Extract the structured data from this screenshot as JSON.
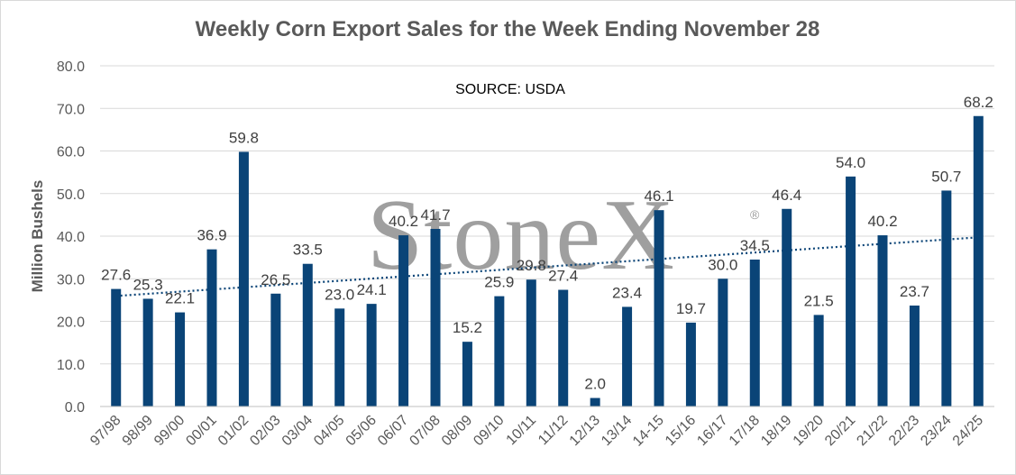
{
  "chart_data": {
    "type": "bar",
    "title": "Weekly Corn Export Sales for the Week Ending November 28",
    "annotation": "SOURCE: USDA",
    "watermark": "StoneX",
    "watermark_mark": "®",
    "ylabel": "Million Bushels",
    "xlabel": "",
    "ylim": [
      0,
      80
    ],
    "yticks": [
      "0.0",
      "10.0",
      "20.0",
      "30.0",
      "40.0",
      "50.0",
      "60.0",
      "70.0",
      "80.0"
    ],
    "grid": true,
    "legend": "none",
    "trendline": "linear",
    "bar_color": "#0a4477",
    "trend_color": "#0a4477",
    "categories": [
      "97/98",
      "98/99",
      "99/00",
      "00/01",
      "01/02",
      "02/03",
      "03/04",
      "04/05",
      "05/06",
      "06/07",
      "07/08",
      "08/09",
      "09/10",
      "10/11",
      "11/12",
      "12/13",
      "13/14",
      "14-15",
      "15/16",
      "16/17",
      "17/18",
      "18/19",
      "19/20",
      "20/21",
      "21/22",
      "22/23",
      "23/24",
      "24/25"
    ],
    "values": [
      27.6,
      25.3,
      22.1,
      36.9,
      59.8,
      26.5,
      33.5,
      23.0,
      24.1,
      40.2,
      41.7,
      15.2,
      25.9,
      29.8,
      27.4,
      2.0,
      23.4,
      46.1,
      19.7,
      30.0,
      34.5,
      46.4,
      21.5,
      54.0,
      40.2,
      23.7,
      50.7,
      68.2
    ],
    "data_labels": [
      "27.6",
      "25.3",
      "22.1",
      "36.9",
      "59.8",
      "26.5",
      "33.5",
      "23.0",
      "24.1",
      "40.2",
      "41.7",
      "15.2",
      "25.9",
      "29.8",
      "27.4",
      "2.0",
      "23.4",
      "46.1",
      "19.7",
      "30.0",
      "34.5",
      "46.4",
      "21.5",
      "54.0",
      "40.2",
      "23.7",
      "50.7",
      "68.2"
    ]
  }
}
